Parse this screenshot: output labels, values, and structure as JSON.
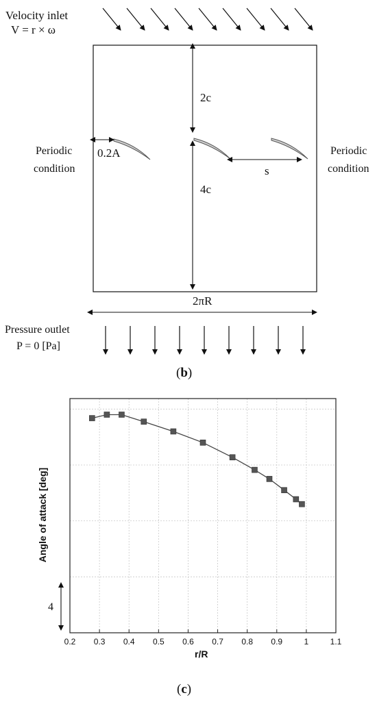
{
  "diagram_b": {
    "inlet_title": "Velocity inlet",
    "inlet_formula": "V = r × ω",
    "periodic_left_1": "Periodic",
    "periodic_left_2": "condition",
    "periodic_right_1": "Periodic",
    "periodic_right_2": "condition",
    "dim_2c": "2c",
    "dim_4c": "4c",
    "dim_02A": "0.2A",
    "dim_s": "s",
    "dim_2piR": "2πR",
    "outlet_title": "Pressure outlet",
    "outlet_formula": "P = 0 [Pa]",
    "caption_open": "(",
    "caption_letter": "b",
    "caption_close": ")"
  },
  "chart_c": {
    "caption_open": "(",
    "caption_letter": "c",
    "caption_close": ")",
    "scale_bar_label": "4"
  },
  "chart_data": {
    "type": "line",
    "title": "",
    "xlabel": "r/R",
    "ylabel": "Angle of attack [deg]",
    "xlim": [
      0.2,
      1.1
    ],
    "xticks": [
      "0.2",
      "0.3",
      "0.4",
      "0.5",
      "0.6",
      "0.7",
      "0.8",
      "0.9",
      "1",
      "1.1"
    ],
    "ylim": [
      0,
      16.75
    ],
    "grid": true,
    "marker": "square",
    "series": [
      {
        "x": [
          0.275,
          0.325,
          0.375,
          0.45,
          0.55,
          0.65,
          0.75,
          0.825,
          0.875,
          0.925,
          0.965,
          0.985
        ],
        "values": [
          15.35,
          15.6,
          15.6,
          15.1,
          14.4,
          13.6,
          12.55,
          11.65,
          11.0,
          10.2,
          9.55,
          9.2
        ]
      }
    ],
    "colors": {
      "marker": "#555555",
      "line": "#444444",
      "grid": "#c8c8c8"
    }
  }
}
